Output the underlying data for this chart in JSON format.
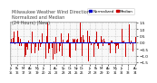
{
  "title": "Milwaukee Weather Wind Direction\nNormalized and Median\n(24 Hours) (New)",
  "title_fontsize": 3.5,
  "title_color": "#444444",
  "bg_color": "#ffffff",
  "plot_bg_color": "#f8f8f8",
  "bar_color": "#cc0000",
  "median_color": "#0000cc",
  "median_value": 0.0,
  "ylim": [
    -1.6,
    1.6
  ],
  "yticks": [
    -1.5,
    -1.0,
    -0.5,
    0.0,
    0.5,
    1.0,
    1.5
  ],
  "ytick_fontsize": 3.0,
  "xtick_fontsize": 2.5,
  "n_points": 120,
  "seed": 42,
  "legend_label1": "Normalized",
  "legend_label2": "Median",
  "legend_fontsize": 3.0,
  "legend_color1": "#0000cc",
  "legend_color2": "#cc0000"
}
